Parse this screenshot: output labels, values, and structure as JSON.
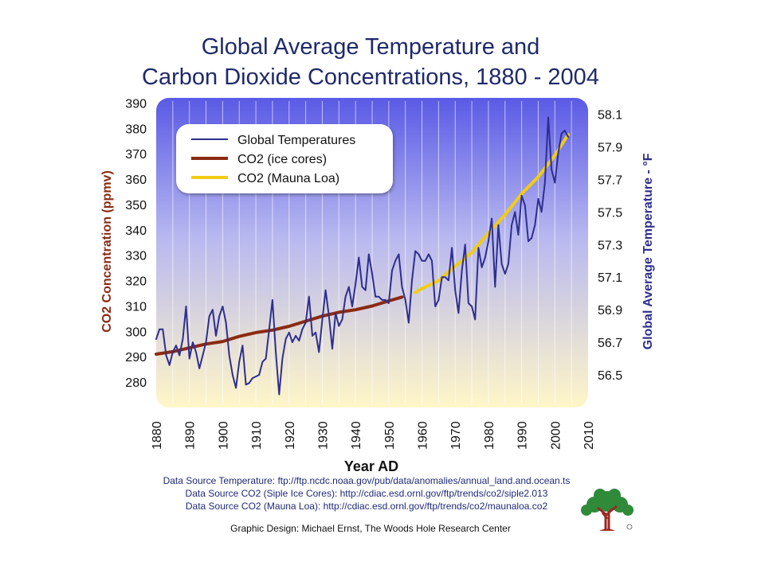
{
  "title_line1": "Global Average Temperature and",
  "title_line2": "Carbon Dioxide Concentrations, 1880 - 2004",
  "colors": {
    "temperature": "#2e2e8f",
    "co2_ice": "#8b2a12",
    "co2_mauna": "#f2cc12",
    "title": "#1f2a6b",
    "plot_top": "#5a5ae6",
    "plot_bottom": "#fff6c8"
  },
  "sources": {
    "temperature": "Data Source Temperature: ftp://ftp.ncdc.noaa.gov/pub/data/anomalies/annual_land.and.ocean.ts",
    "ice": "Data Source CO2 (Siple Ice Cores): http://cdiac.esd.ornl.gov/ftp/trends/co2/siple2.013",
    "mauna": "Data Source CO2 (Mauna Loa): http://cdiac.esd.ornl.gov/ftp/trends/co2/maunaloa.co2"
  },
  "credit": "Graphic Design: Michael Ernst, The Woods Hole Research Center",
  "logo_icon": "tree-logo-icon",
  "chart_data": {
    "type": "line",
    "xlabel": "Year AD",
    "ylabel_left": "CO2 Concentration (ppmv)",
    "ylabel_right": "Global Average Temperature - °F",
    "xlim": [
      1880,
      2010
    ],
    "ylim_left": [
      270,
      392
    ],
    "ylim_right": [
      56.3,
      58.2
    ],
    "x_ticks": [
      1880,
      1890,
      1900,
      1910,
      1920,
      1930,
      1940,
      1950,
      1960,
      1970,
      1980,
      1990,
      2000,
      2010
    ],
    "left_ticks": [
      280,
      290,
      300,
      310,
      320,
      330,
      340,
      350,
      360,
      370,
      380,
      390
    ],
    "right_ticks": [
      "56.5",
      "56.7",
      "56.9",
      "57.1",
      "57.3",
      "57.5",
      "57.7",
      "57.9",
      "58.1"
    ],
    "grid": "vertical",
    "legend_position": "top-left",
    "series": [
      {
        "name": "Global Temperatures",
        "axis": "right",
        "x": [
          1880,
          1881,
          1882,
          1883,
          1884,
          1885,
          1886,
          1887,
          1888,
          1889,
          1890,
          1891,
          1892,
          1893,
          1894,
          1895,
          1896,
          1897,
          1898,
          1899,
          1900,
          1901,
          1902,
          1903,
          1904,
          1905,
          1906,
          1907,
          1908,
          1909,
          1910,
          1911,
          1912,
          1913,
          1914,
          1915,
          1916,
          1917,
          1918,
          1919,
          1920,
          1921,
          1922,
          1923,
          1924,
          1925,
          1926,
          1927,
          1928,
          1929,
          1930,
          1931,
          1932,
          1933,
          1934,
          1935,
          1936,
          1937,
          1938,
          1939,
          1940,
          1941,
          1942,
          1943,
          1944,
          1945,
          1946,
          1947,
          1948,
          1949,
          1950,
          1951,
          1952,
          1953,
          1954,
          1955,
          1956,
          1957,
          1958,
          1959,
          1960,
          1961,
          1962,
          1963,
          1964,
          1965,
          1966,
          1967,
          1968,
          1969,
          1970,
          1971,
          1972,
          1973,
          1974,
          1975,
          1976,
          1977,
          1978,
          1979,
          1980,
          1981,
          1982,
          1983,
          1984,
          1985,
          1986,
          1987,
          1988,
          1989,
          1990,
          1991,
          1992,
          1993,
          1994,
          1995,
          1996,
          1997,
          1998,
          1999,
          2000,
          2001,
          2002,
          2003,
          2004
        ],
        "values": [
          56.72,
          56.78,
          56.78,
          56.62,
          56.56,
          56.64,
          56.68,
          56.62,
          56.72,
          56.92,
          56.6,
          56.7,
          56.64,
          56.54,
          56.62,
          56.7,
          56.86,
          56.9,
          56.74,
          56.86,
          56.92,
          56.82,
          56.62,
          56.5,
          56.42,
          56.58,
          56.68,
          56.44,
          56.45,
          56.48,
          56.49,
          56.5,
          56.58,
          56.6,
          56.78,
          56.96,
          56.64,
          56.38,
          56.6,
          56.72,
          56.76,
          56.7,
          56.74,
          56.71,
          56.78,
          56.82,
          56.98,
          56.74,
          56.76,
          56.64,
          56.84,
          57.02,
          56.86,
          56.66,
          56.88,
          56.8,
          56.84,
          56.98,
          57.04,
          56.92,
          57.06,
          57.22,
          57.04,
          57.02,
          57.24,
          57.12,
          56.98,
          56.98,
          56.96,
          56.96,
          56.94,
          57.14,
          57.2,
          57.24,
          57.04,
          56.96,
          56.82,
          57.08,
          57.26,
          57.24,
          57.2,
          57.2,
          57.24,
          57.2,
          56.92,
          56.96,
          57.1,
          57.1,
          57.08,
          57.28,
          57.02,
          56.88,
          57.14,
          57.3,
          56.94,
          56.92,
          56.84,
          57.28,
          57.16,
          57.22,
          57.32,
          57.46,
          57.04,
          57.42,
          57.18,
          57.12,
          57.18,
          57.42,
          57.5,
          57.36,
          57.6,
          57.54,
          57.32,
          57.34,
          57.42,
          57.58,
          57.5,
          57.68,
          58.08,
          57.76,
          57.68,
          57.86,
          57.98,
          58.0,
          57.96
        ]
      },
      {
        "name": "CO2 (ice cores)",
        "axis": "left",
        "x": [
          1880,
          1885,
          1890,
          1895,
          1900,
          1905,
          1910,
          1915,
          1920,
          1925,
          1930,
          1935,
          1940,
          1945,
          1950,
          1954
        ],
        "values": [
          291,
          292,
          293.5,
          295,
          296,
          298,
          299.5,
          300.5,
          302,
          304,
          306,
          307.5,
          308.5,
          310,
          312,
          313.5
        ]
      },
      {
        "name": "CO2 (Mauna Loa)",
        "axis": "left",
        "x": [
          1958,
          1960,
          1965,
          1970,
          1975,
          1980,
          1985,
          1990,
          1995,
          2000,
          2004
        ],
        "values": [
          315.3,
          316.9,
          320.0,
          325.7,
          331.1,
          338.7,
          346.0,
          354.2,
          360.9,
          369.4,
          377.5
        ]
      }
    ]
  }
}
